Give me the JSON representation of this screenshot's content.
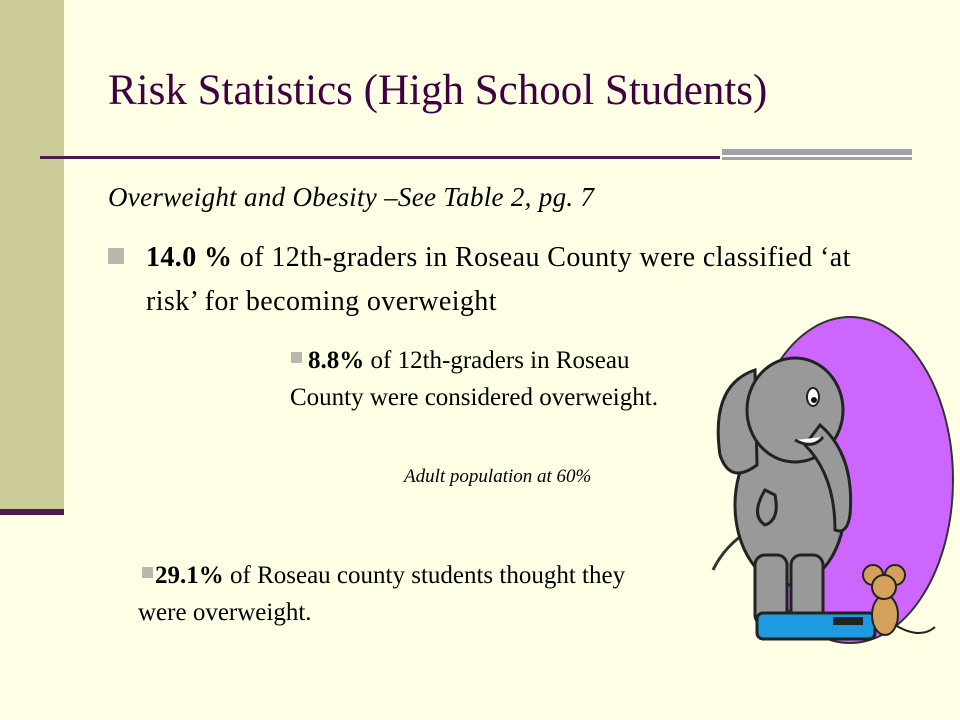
{
  "title": "Risk Statistics (High School Students)",
  "subheading": "Overweight and Obesity –See Table 2, pg. 7",
  "bullets": [
    {
      "bold": "14.0 %",
      "text": " of 12th-graders in Roseau County were classified ‘at risk’ for becoming overweight"
    },
    {
      "bold": "8.8%",
      "text": " of 12th-graders in Roseau County were considered overweight."
    },
    {
      "bold": "29.1%",
      "text": " of Roseau county students thought they were overweight."
    }
  ],
  "note": "Adult population at 60%",
  "illustration": "elephant-on-scale-clipart",
  "colors": {
    "background": "#ffffe6",
    "sidebar": "#cccc99",
    "title": "#400040",
    "accent_dark": "#4d1a4d",
    "accent_gray": "#a0a0b0",
    "purple_oval": "#cc66ff"
  }
}
